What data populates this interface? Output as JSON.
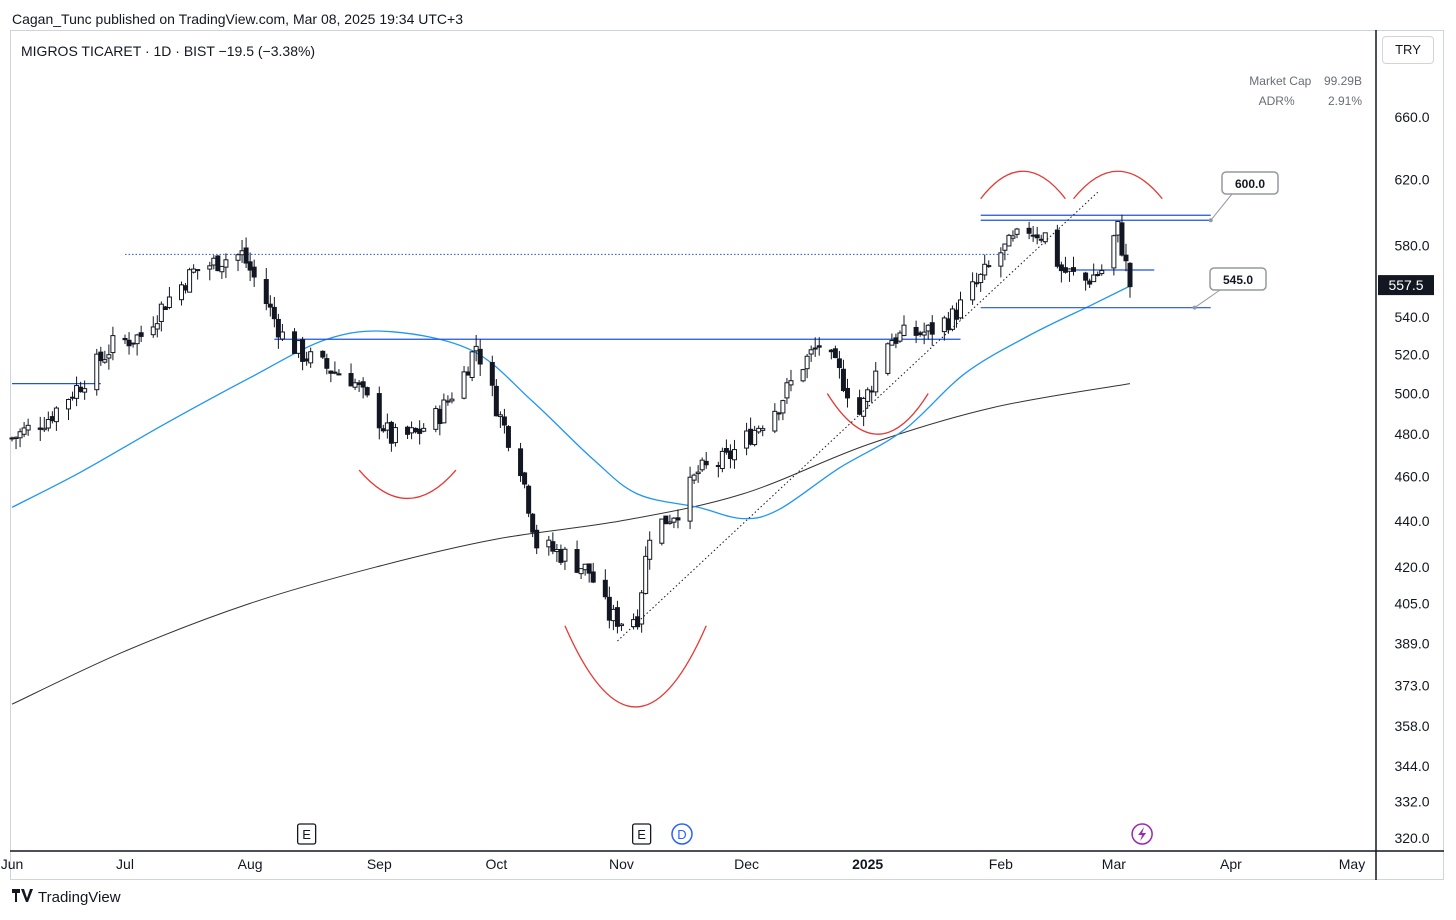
{
  "header": {
    "published": "Cagan_Tunc published on TradingView.com, Mar 08, 2025 19:34 UTC+3",
    "symbol_line": "MIGROS TICARET · 1D · BIST  −19.5 (−3.38%)"
  },
  "stats": {
    "market_cap_label": "Market Cap",
    "market_cap_value": "99.29B",
    "adr_label": "ADR%",
    "adr_value": "2.91%"
  },
  "currency": "TRY",
  "footer": {
    "brand": "TradingView"
  },
  "chart_data": {
    "type": "candlestick",
    "symbol": "MIGROS TICARET",
    "interval": "1D",
    "exchange": "BIST",
    "scale": "log",
    "change": "−19.5 (−3.38%)",
    "last_price": 557.5,
    "last_price_label": "557.5",
    "y_ticks": [
      660,
      620,
      580,
      540,
      520,
      500,
      480,
      460,
      440,
      420,
      405,
      389,
      373,
      358,
      344,
      332,
      320
    ],
    "y_tick_labels": [
      "660.0",
      "620.0",
      "580.0",
      "540.0",
      "520.0",
      "500.0",
      "480.0",
      "460.0",
      "440.0",
      "420.0",
      "405.0",
      "389.0",
      "373.0",
      "358.0",
      "344.0",
      "332.0",
      "320.0"
    ],
    "x_ticks": [
      {
        "label": "Jun",
        "date": "2024-06-03"
      },
      {
        "label": "Jul",
        "date": "2024-07-01"
      },
      {
        "label": "Aug",
        "date": "2024-08-01"
      },
      {
        "label": "Sep",
        "date": "2024-09-02"
      },
      {
        "label": "Oct",
        "date": "2024-10-01"
      },
      {
        "label": "Nov",
        "date": "2024-11-01"
      },
      {
        "label": "Dec",
        "date": "2024-12-02"
      },
      {
        "label": "2025",
        "date": "2025-01-01",
        "bold": true
      },
      {
        "label": "Feb",
        "date": "2025-02-03"
      },
      {
        "label": "Mar",
        "date": "2025-03-03"
      },
      {
        "label": "Apr",
        "date": "2025-04-01"
      },
      {
        "label": "May",
        "date": "2025-05-01"
      }
    ],
    "x_range": [
      "2024-06-03",
      "2025-05-01"
    ],
    "y_range": [
      320,
      690
    ],
    "price_path": [
      [
        "2024-06-03",
        478
      ],
      [
        "2024-06-12",
        488
      ],
      [
        "2024-06-20",
        505
      ],
      [
        "2024-06-28",
        525
      ],
      [
        "2024-07-05",
        530
      ],
      [
        "2024-07-11",
        548
      ],
      [
        "2024-07-18",
        565
      ],
      [
        "2024-07-25",
        572
      ],
      [
        "2024-07-30",
        575
      ],
      [
        "2024-08-05",
        548
      ],
      [
        "2024-08-09",
        530
      ],
      [
        "2024-08-14",
        520
      ],
      [
        "2024-08-20",
        513
      ],
      [
        "2024-08-26",
        508
      ],
      [
        "2024-08-30",
        496
      ],
      [
        "2024-09-05",
        478
      ],
      [
        "2024-09-11",
        480
      ],
      [
        "2024-09-17",
        490
      ],
      [
        "2024-09-23",
        510
      ],
      [
        "2024-09-26",
        525
      ],
      [
        "2024-10-02",
        488
      ],
      [
        "2024-10-07",
        465
      ],
      [
        "2024-10-11",
        430
      ],
      [
        "2024-10-18",
        425
      ],
      [
        "2024-10-24",
        418
      ],
      [
        "2024-10-29",
        400
      ],
      [
        "2024-11-01",
        398
      ],
      [
        "2024-11-05",
        400
      ],
      [
        "2024-11-08",
        435
      ],
      [
        "2024-11-15",
        445
      ],
      [
        "2024-11-20",
        462
      ],
      [
        "2024-11-27",
        468
      ],
      [
        "2024-12-03",
        480
      ],
      [
        "2024-12-10",
        495
      ],
      [
        "2024-12-16",
        515
      ],
      [
        "2024-12-20",
        525
      ],
      [
        "2024-12-25",
        510
      ],
      [
        "2024-12-30",
        490
      ],
      [
        "2025-01-02",
        505
      ],
      [
        "2025-01-06",
        528
      ],
      [
        "2025-01-10",
        530
      ],
      [
        "2025-01-16",
        532
      ],
      [
        "2025-01-22",
        540
      ],
      [
        "2025-01-28",
        558
      ],
      [
        "2025-02-03",
        576
      ],
      [
        "2025-02-10",
        590
      ],
      [
        "2025-02-14",
        586
      ],
      [
        "2025-02-18",
        566
      ],
      [
        "2025-02-24",
        560
      ],
      [
        "2025-02-28",
        566
      ],
      [
        "2025-03-04",
        590
      ],
      [
        "2025-03-07",
        557.5
      ]
    ],
    "ma_short_path": [
      [
        "2024-06-03",
        446
      ],
      [
        "2024-06-20",
        462
      ],
      [
        "2024-07-10",
        484
      ],
      [
        "2024-08-01",
        508
      ],
      [
        "2024-08-20",
        528
      ],
      [
        "2024-09-05",
        532
      ],
      [
        "2024-09-25",
        522
      ],
      [
        "2024-10-10",
        496
      ],
      [
        "2024-10-25",
        468
      ],
      [
        "2024-11-05",
        452
      ],
      [
        "2024-11-20",
        446
      ],
      [
        "2024-12-01",
        441
      ],
      [
        "2024-12-10",
        445
      ],
      [
        "2024-12-25",
        464
      ],
      [
        "2025-01-10",
        482
      ],
      [
        "2025-01-25",
        510
      ],
      [
        "2025-02-10",
        530
      ],
      [
        "2025-02-25",
        546
      ],
      [
        "2025-03-07",
        557
      ]
    ],
    "ma_long_path": [
      [
        "2024-06-03",
        366
      ],
      [
        "2024-07-01",
        386
      ],
      [
        "2024-08-01",
        405
      ],
      [
        "2024-09-01",
        420
      ],
      [
        "2024-10-01",
        432
      ],
      [
        "2024-11-01",
        440
      ],
      [
        "2024-12-01",
        452
      ],
      [
        "2025-01-01",
        475
      ],
      [
        "2025-02-01",
        493
      ],
      [
        "2025-03-07",
        505
      ]
    ],
    "horizontal_levels": [
      {
        "price": 575,
        "from": "2024-07-01",
        "to": "2025-02-05",
        "style": "dotted"
      },
      {
        "price": 528,
        "from": "2024-08-07",
        "to": "2025-01-24",
        "style": "solid"
      },
      {
        "price": 505,
        "from": "2024-06-03",
        "to": "2024-06-25",
        "style": "solid"
      },
      {
        "price": 598,
        "from": "2025-01-29",
        "to": "2025-03-27",
        "style": "solid"
      },
      {
        "price": 595,
        "from": "2025-01-29",
        "to": "2025-03-27",
        "style": "solid"
      },
      {
        "price": 566,
        "from": "2025-02-18",
        "to": "2025-03-13",
        "style": "solid"
      },
      {
        "price": 545,
        "from": "2025-01-29",
        "to": "2025-03-27",
        "style": "solid"
      }
    ],
    "trendline": {
      "from": [
        "2024-10-31",
        390
      ],
      "to": [
        "2025-02-27",
        612
      ],
      "style": "dotted"
    },
    "price_labels": [
      "600.0",
      "545.0"
    ],
    "arcs": [
      {
        "from": [
          "2024-08-28",
          463
        ],
        "to": [
          "2024-09-21",
          463
        ],
        "depth": 450,
        "shape": "cup"
      },
      {
        "from": [
          "2024-10-18",
          396
        ],
        "to": [
          "2024-11-22",
          396
        ],
        "depth": 365,
        "shape": "cup"
      },
      {
        "from": [
          "2024-12-22",
          500
        ],
        "to": [
          "2025-01-16",
          500
        ],
        "depth": 480,
        "shape": "cup"
      },
      {
        "from": [
          "2025-01-29",
          608
        ],
        "to": [
          "2025-02-19",
          608
        ],
        "depth": 625,
        "shape": "cap"
      },
      {
        "from": [
          "2025-02-21",
          608
        ],
        "to": [
          "2025-03-15",
          608
        ],
        "depth": 625,
        "shape": "cap"
      }
    ],
    "events": [
      {
        "type": "E",
        "date": "2024-08-15"
      },
      {
        "type": "E",
        "date": "2024-11-06"
      },
      {
        "type": "D",
        "date": "2024-11-16"
      },
      {
        "type": "split-icon",
        "date": "2025-03-10"
      }
    ]
  }
}
